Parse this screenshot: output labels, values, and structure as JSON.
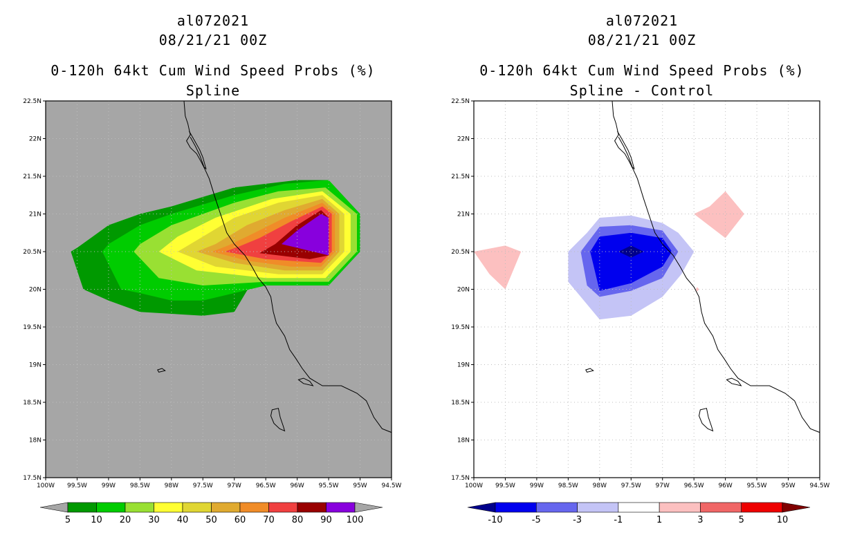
{
  "chart_data": [
    {
      "type": "heatmap",
      "panel": "left",
      "title_lines": [
        "al072021",
        "08/21/21 00Z",
        "0-120h 64kt Cum Wind Speed Probs (%)",
        "Spline"
      ],
      "x_ticks": [
        "100W",
        "99.5W",
        "99W",
        "98.5W",
        "98W",
        "97.5W",
        "97W",
        "96.5W",
        "96W",
        "95.5W",
        "95W",
        "94.5W"
      ],
      "y_ticks": [
        "17.5N",
        "18N",
        "18.5N",
        "19N",
        "19.5N",
        "20N",
        "20.5N",
        "21N",
        "21.5N",
        "22N",
        "22.5N"
      ],
      "xlim": [
        -100,
        -94.5
      ],
      "ylim": [
        17.5,
        22.5
      ],
      "background_color": "#a6a6a6",
      "grid": true,
      "colorbar": {
        "labels": [
          "5",
          "10",
          "20",
          "30",
          "40",
          "50",
          "60",
          "70",
          "80",
          "90",
          "100"
        ],
        "colors": [
          "#009900",
          "#00cc00",
          "#99e033",
          "#ffff33",
          "#e0d633",
          "#e0aa30",
          "#f08c28",
          "#f04040",
          "#990000",
          "#8800dd"
        ],
        "end_colors": [
          "#a6a6a6",
          "#a6a6a6"
        ]
      },
      "contours": [
        {
          "level": 5,
          "color": "#009900",
          "polygon": [
            [
              -99.6,
              20.5
            ],
            [
              -99.4,
              20.0
            ],
            [
              -99.0,
              19.85
            ],
            [
              -98.5,
              19.7
            ],
            [
              -97.5,
              19.65
            ],
            [
              -97.0,
              19.7
            ],
            [
              -96.75,
              20.05
            ],
            [
              -96.0,
              20.05
            ],
            [
              -95.5,
              20.05
            ],
            [
              -95.0,
              20.5
            ],
            [
              -95.0,
              21.0
            ],
            [
              -95.5,
              21.45
            ],
            [
              -96.0,
              21.45
            ],
            [
              -97.0,
              21.35
            ],
            [
              -98.0,
              21.1
            ],
            [
              -98.5,
              21.0
            ],
            [
              -99.0,
              20.85
            ],
            [
              -99.5,
              20.55
            ]
          ]
        },
        {
          "level": 10,
          "color": "#00cc00",
          "polygon": [
            [
              -99.1,
              20.5
            ],
            [
              -98.8,
              20.0
            ],
            [
              -98.5,
              19.95
            ],
            [
              -98.0,
              19.85
            ],
            [
              -97.5,
              19.85
            ],
            [
              -97.0,
              19.95
            ],
            [
              -96.5,
              20.05
            ],
            [
              -95.5,
              20.05
            ],
            [
              -95.0,
              20.5
            ],
            [
              -95.0,
              21.0
            ],
            [
              -95.5,
              21.45
            ],
            [
              -96.2,
              21.4
            ],
            [
              -97.0,
              21.25
            ],
            [
              -98.0,
              21.0
            ],
            [
              -98.5,
              20.85
            ],
            [
              -99.0,
              20.6
            ]
          ]
        },
        {
          "level": 20,
          "color": "#99e033",
          "polygon": [
            [
              -98.6,
              20.5
            ],
            [
              -98.2,
              20.15
            ],
            [
              -97.5,
              20.05
            ],
            [
              -96.5,
              20.1
            ],
            [
              -95.5,
              20.1
            ],
            [
              -95.05,
              20.5
            ],
            [
              -95.05,
              21.0
            ],
            [
              -95.55,
              21.35
            ],
            [
              -96.3,
              21.3
            ],
            [
              -97.0,
              21.15
            ],
            [
              -97.5,
              21.0
            ],
            [
              -98.0,
              20.85
            ],
            [
              -98.5,
              20.6
            ]
          ]
        },
        {
          "level": 30,
          "color": "#ffff33",
          "polygon": [
            [
              -98.2,
              20.5
            ],
            [
              -97.6,
              20.25
            ],
            [
              -96.5,
              20.15
            ],
            [
              -95.55,
              20.15
            ],
            [
              -95.15,
              20.5
            ],
            [
              -95.15,
              21.0
            ],
            [
              -95.6,
              21.3
            ],
            [
              -96.4,
              21.2
            ],
            [
              -97.3,
              20.95
            ],
            [
              -97.9,
              20.7
            ]
          ]
        },
        {
          "level": 40,
          "color": "#e0d633",
          "polygon": [
            [
              -97.9,
              20.5
            ],
            [
              -97.3,
              20.3
            ],
            [
              -96.3,
              20.2
            ],
            [
              -95.6,
              20.2
            ],
            [
              -95.25,
              20.5
            ],
            [
              -95.25,
              21.0
            ],
            [
              -95.6,
              21.25
            ],
            [
              -96.3,
              21.15
            ],
            [
              -97.0,
              20.95
            ],
            [
              -97.6,
              20.65
            ]
          ]
        },
        {
          "level": 50,
          "color": "#e0aa30",
          "polygon": [
            [
              -97.6,
              20.5
            ],
            [
              -97.0,
              20.35
            ],
            [
              -96.2,
              20.25
            ],
            [
              -95.6,
              20.25
            ],
            [
              -95.33,
              20.5
            ],
            [
              -95.33,
              21.0
            ],
            [
              -95.6,
              21.2
            ],
            [
              -96.2,
              21.05
            ],
            [
              -96.8,
              20.85
            ],
            [
              -97.3,
              20.6
            ]
          ]
        },
        {
          "level": 60,
          "color": "#f08c28",
          "polygon": [
            [
              -97.35,
              20.5
            ],
            [
              -96.8,
              20.38
            ],
            [
              -96.1,
              20.3
            ],
            [
              -95.62,
              20.3
            ],
            [
              -95.4,
              20.5
            ],
            [
              -95.4,
              21.0
            ],
            [
              -95.6,
              21.15
            ],
            [
              -96.2,
              20.95
            ],
            [
              -96.8,
              20.7
            ],
            [
              -97.1,
              20.58
            ]
          ]
        },
        {
          "level": 70,
          "color": "#f04040",
          "polygon": [
            [
              -97.15,
              20.5
            ],
            [
              -96.5,
              20.4
            ],
            [
              -95.62,
              20.35
            ],
            [
              -95.45,
              20.5
            ],
            [
              -95.45,
              21.0
            ],
            [
              -95.6,
              21.1
            ],
            [
              -96.1,
              20.9
            ],
            [
              -96.6,
              20.68
            ],
            [
              -96.95,
              20.56
            ]
          ]
        },
        {
          "level": 80,
          "color": "#990000",
          "polygon": [
            [
              -96.6,
              20.48
            ],
            [
              -95.8,
              20.4
            ],
            [
              -95.5,
              20.45
            ],
            [
              -95.5,
              20.95
            ],
            [
              -95.62,
              21.05
            ],
            [
              -96.0,
              20.85
            ],
            [
              -96.35,
              20.6
            ]
          ]
        },
        {
          "level": 90,
          "color": "#8800dd",
          "polygon": [
            [
              -96.0,
              20.55
            ],
            [
              -95.5,
              20.45
            ],
            [
              -95.5,
              20.95
            ],
            [
              -95.62,
              21.0
            ],
            [
              -96.0,
              20.78
            ],
            [
              -96.25,
              20.6
            ]
          ]
        }
      ]
    },
    {
      "type": "heatmap",
      "panel": "right",
      "title_lines": [
        "al072021",
        "08/21/21 00Z",
        "0-120h 64kt Cum Wind Speed Probs (%)",
        "Spline - Control"
      ],
      "x_ticks": [
        "100W",
        "99.5W",
        "99W",
        "98.5W",
        "98W",
        "97.5W",
        "97W",
        "96.5W",
        "96W",
        "95.5W",
        "95W",
        "94.5W"
      ],
      "y_ticks": [
        "17.5N",
        "18N",
        "18.5N",
        "19N",
        "19.5N",
        "20N",
        "20.5N",
        "21N",
        "21.5N",
        "22N",
        "22.5N"
      ],
      "xlim": [
        -100,
        -94.5
      ],
      "ylim": [
        17.5,
        22.5
      ],
      "background_color": "#ffffff",
      "grid": true,
      "colorbar": {
        "labels": [
          "-10",
          "-5",
          "-3",
          "-1",
          "1",
          "3",
          "5",
          "10"
        ],
        "colors": [
          "#0000ee",
          "#6666ee",
          "#c4c4f6",
          "#ffffff",
          "#fcc0c0",
          "#f06666",
          "#ee0000"
        ],
        "end_colors": [
          "#00008b",
          "#800000"
        ]
      },
      "contours": [
        {
          "level": -3,
          "color": "#c4c4f6",
          "polygon": [
            [
              -98.5,
              20.5
            ],
            [
              -98.5,
              20.1
            ],
            [
              -98.2,
              19.8
            ],
            [
              -98.0,
              19.6
            ],
            [
              -97.5,
              19.65
            ],
            [
              -97.0,
              19.9
            ],
            [
              -96.7,
              20.2
            ],
            [
              -96.5,
              20.5
            ],
            [
              -96.75,
              20.75
            ],
            [
              -97.0,
              20.88
            ],
            [
              -97.5,
              20.98
            ],
            [
              -98.0,
              20.95
            ],
            [
              -98.2,
              20.75
            ]
          ]
        },
        {
          "level": -5,
          "color": "#6666ee",
          "polygon": [
            [
              -98.3,
              20.5
            ],
            [
              -98.2,
              20.05
            ],
            [
              -98.0,
              19.9
            ],
            [
              -97.5,
              19.98
            ],
            [
              -97.0,
              20.15
            ],
            [
              -96.75,
              20.5
            ],
            [
              -97.0,
              20.78
            ],
            [
              -97.5,
              20.85
            ],
            [
              -98.0,
              20.83
            ]
          ]
        },
        {
          "level": -10,
          "color": "#0000ee",
          "polygon": [
            [
              -98.15,
              20.5
            ],
            [
              -98.0,
              19.98
            ],
            [
              -97.5,
              20.08
            ],
            [
              -97.0,
              20.3
            ],
            [
              -96.85,
              20.5
            ],
            [
              -97.0,
              20.68
            ],
            [
              -97.5,
              20.75
            ],
            [
              -98.0,
              20.7
            ]
          ]
        },
        {
          "level": -15,
          "color": "#00008b",
          "polygon": [
            [
              -97.7,
              20.5
            ],
            [
              -97.5,
              20.42
            ],
            [
              -97.3,
              20.5
            ],
            [
              -97.5,
              20.58
            ]
          ]
        },
        {
          "level": 1,
          "color": "#fcc0c0",
          "polygon": [
            [
              -100.0,
              20.5
            ],
            [
              -99.75,
              20.2
            ],
            [
              -99.5,
              20.0
            ],
            [
              -99.25,
              20.5
            ],
            [
              -99.5,
              20.58
            ],
            [
              -100.0,
              20.5
            ]
          ]
        },
        {
          "level": 1,
          "color": "#fcc0c0",
          "polygon": [
            [
              -96.5,
              21.0
            ],
            [
              -96.25,
              21.1
            ],
            [
              -96.0,
              21.3
            ],
            [
              -95.7,
              21.0
            ],
            [
              -96.0,
              20.68
            ]
          ]
        },
        {
          "level": 1,
          "color": "#fcc0c0",
          "polygon": [
            [
              -96.47,
              20.0
            ],
            [
              -96.45,
              19.97
            ],
            [
              -96.42,
              20.0
            ],
            [
              -96.45,
              20.03
            ]
          ]
        }
      ]
    }
  ],
  "coastline": [
    [
      -97.8,
      22.5
    ],
    [
      -97.78,
      22.3
    ],
    [
      -97.74,
      22.2
    ],
    [
      -97.7,
      22.05
    ],
    [
      -97.76,
      21.97
    ],
    [
      -97.7,
      21.88
    ],
    [
      -97.6,
      21.8
    ],
    [
      -97.52,
      21.68
    ],
    [
      -97.46,
      21.58
    ],
    [
      -97.4,
      21.47
    ],
    [
      -97.3,
      21.2
    ],
    [
      -97.22,
      21.0
    ],
    [
      -97.12,
      20.75
    ],
    [
      -97.0,
      20.6
    ],
    [
      -96.83,
      20.45
    ],
    [
      -96.72,
      20.3
    ],
    [
      -96.62,
      20.15
    ],
    [
      -96.5,
      20.03
    ],
    [
      -96.42,
      19.9
    ],
    [
      -96.38,
      19.7
    ],
    [
      -96.33,
      19.55
    ],
    [
      -96.2,
      19.38
    ],
    [
      -96.12,
      19.2
    ],
    [
      -96.02,
      19.08
    ],
    [
      -95.92,
      18.95
    ],
    [
      -95.8,
      18.82
    ],
    [
      -95.6,
      18.72
    ],
    [
      -95.3,
      18.72
    ],
    [
      -95.05,
      18.62
    ],
    [
      -94.9,
      18.52
    ],
    [
      -94.78,
      18.3
    ],
    [
      -94.65,
      18.15
    ],
    [
      -94.5,
      18.1
    ]
  ],
  "lake": [
    [
      -97.72,
      22.1
    ],
    [
      -97.65,
      22.0
    ],
    [
      -97.55,
      21.85
    ],
    [
      -97.5,
      21.75
    ],
    [
      -97.45,
      21.6
    ],
    [
      -97.48,
      21.62
    ],
    [
      -97.55,
      21.78
    ],
    [
      -97.62,
      21.9
    ],
    [
      -97.7,
      22.02
    ]
  ],
  "lagoon": [
    [
      -95.98,
      18.8
    ],
    [
      -95.9,
      18.75
    ],
    [
      -95.75,
      18.72
    ],
    [
      -95.8,
      18.78
    ],
    [
      -95.9,
      18.82
    ]
  ],
  "small_lake": [
    [
      -98.2,
      18.9
    ],
    [
      -98.1,
      18.92
    ],
    [
      -98.15,
      18.95
    ],
    [
      -98.22,
      18.93
    ]
  ],
  "island": [
    [
      -96.4,
      18.4
    ],
    [
      -96.3,
      18.42
    ],
    [
      -96.27,
      18.3
    ],
    [
      -96.22,
      18.18
    ],
    [
      -96.2,
      18.12
    ],
    [
      -96.28,
      18.15
    ],
    [
      -96.37,
      18.22
    ],
    [
      -96.42,
      18.32
    ]
  ]
}
